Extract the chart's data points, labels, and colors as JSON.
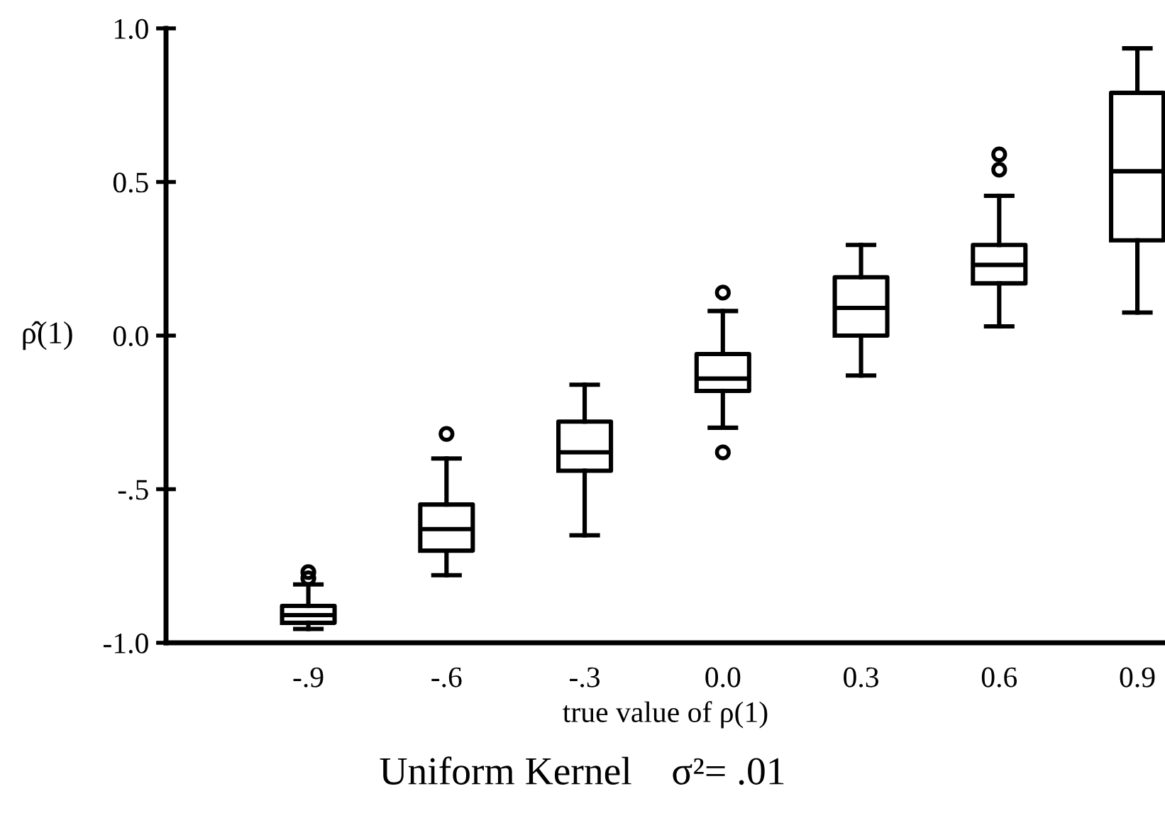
{
  "chart_data": {
    "type": "box",
    "xlabel": "true value of ρ(1)",
    "ylabel": "ρ̂(1)",
    "annotations": [
      "Uniform Kernel    σ²= .01"
    ],
    "categories": [
      "-.9",
      "-.6",
      "-.3",
      "0.0",
      "0.3",
      "0.6",
      "0.9"
    ],
    "boxes": [
      {
        "low": -0.955,
        "q1": -0.935,
        "median": -0.91,
        "q3": -0.88,
        "high": -0.81,
        "outliers": [
          -0.77,
          -0.79
        ]
      },
      {
        "low": -0.78,
        "q1": -0.7,
        "median": -0.63,
        "q3": -0.55,
        "high": -0.4,
        "outliers": [
          -0.32
        ]
      },
      {
        "low": -0.65,
        "q1": -0.44,
        "median": -0.38,
        "q3": -0.28,
        "high": -0.16
      },
      {
        "low": -0.3,
        "q1": -0.18,
        "median": -0.14,
        "q3": -0.06,
        "high": 0.08,
        "outliers": [
          0.14,
          -0.38
        ]
      },
      {
        "low": -0.13,
        "q1": 0.0,
        "median": 0.09,
        "q3": 0.19,
        "high": 0.295
      },
      {
        "low": 0.03,
        "q1": 0.17,
        "median": 0.23,
        "q3": 0.295,
        "high": 0.455,
        "outliers": [
          0.54,
          0.59
        ]
      },
      {
        "low": 0.075,
        "q1": 0.31,
        "median": 0.535,
        "q3": 0.79,
        "high": 0.935
      }
    ],
    "color": "#000000",
    "ylim": [
      -1.0,
      1.0
    ],
    "yticks": [
      {
        "value": -1.0,
        "label": "-1.0"
      },
      {
        "value": -0.5,
        "label": "-.5"
      },
      {
        "value": 0.0,
        "label": "0.0"
      },
      {
        "value": 0.5,
        "label": "0.5"
      },
      {
        "value": 1.0,
        "label": "1.0"
      }
    ],
    "grid": false,
    "legend": false
  }
}
